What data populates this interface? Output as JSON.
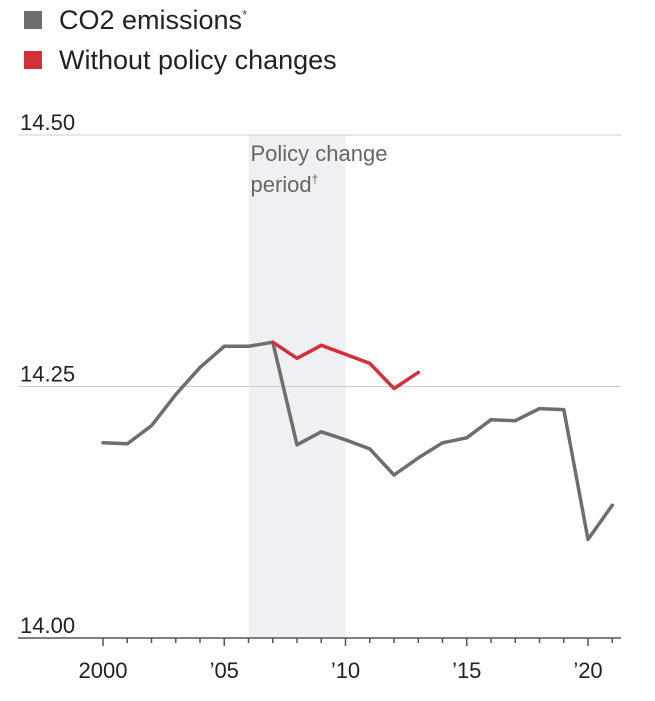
{
  "legend": {
    "items": [
      {
        "label": "CO2 emissions",
        "mark": "*",
        "color": "#6e6e6e"
      },
      {
        "label": "Without policy changes",
        "mark": "",
        "color": "#d3313a"
      }
    ]
  },
  "chart_data": {
    "type": "line",
    "title": "",
    "xlabel": "",
    "ylabel": "",
    "xlim": [
      1999.0,
      2021.3
    ],
    "ylim": [
      14.0,
      14.5
    ],
    "yticks": [
      {
        "value": 14.5,
        "label": "14.50"
      },
      {
        "value": 14.25,
        "label": "14.25"
      },
      {
        "value": 14.0,
        "label": "14.00"
      }
    ],
    "xtick_labels": [
      {
        "value": 2000,
        "label": "2000"
      },
      {
        "value": 2005,
        "label": "’05"
      },
      {
        "value": 2010,
        "label": "’10"
      },
      {
        "value": 2015,
        "label": "’15"
      },
      {
        "value": 2020,
        "label": "’20"
      }
    ],
    "xminor_ticks": [
      2000,
      2001,
      2002,
      2003,
      2004,
      2005,
      2006,
      2007,
      2008,
      2009,
      2010,
      2011,
      2012,
      2013,
      2014,
      2015,
      2016,
      2017,
      2018,
      2019,
      2020,
      2021
    ],
    "grid": "horizontal",
    "band": {
      "x_start": 2006,
      "x_end": 2010,
      "label_lines": [
        "Policy change",
        "period"
      ],
      "label_mark": "†"
    },
    "series": [
      {
        "name": "CO2 emissions",
        "color": "#6e6e6e",
        "x": [
          2000,
          2001,
          2002,
          2003,
          2004,
          2005,
          2006,
          2007,
          2008,
          2009,
          2010,
          2011,
          2012,
          2013,
          2014,
          2015,
          2016,
          2017,
          2018,
          2019,
          2020,
          2021
        ],
        "y": [
          14.194,
          14.193,
          14.211,
          14.242,
          14.269,
          14.29,
          14.29,
          14.294,
          14.192,
          14.205,
          14.197,
          14.188,
          14.162,
          14.179,
          14.194,
          14.199,
          14.217,
          14.216,
          14.228,
          14.227,
          14.098,
          14.132
        ]
      },
      {
        "name": "Without policy changes",
        "color": "#d3313a",
        "x": [
          2007,
          2008,
          2009,
          2010,
          2011,
          2012,
          2013
        ],
        "y": [
          14.294,
          14.278,
          14.291,
          14.282,
          14.273,
          14.248,
          14.264
        ]
      }
    ]
  }
}
